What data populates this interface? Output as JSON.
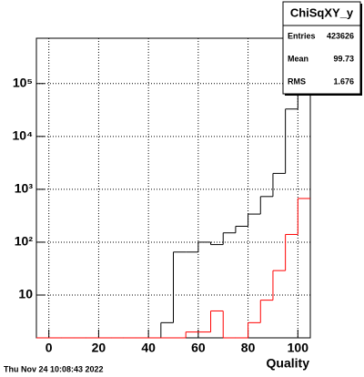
{
  "chart_data": {
    "type": "histogram",
    "x_label": "Quality",
    "timestamp": "Thu Nov 24 10:08:43 2022",
    "bins": [
      -5,
      0,
      5,
      10,
      15,
      20,
      25,
      30,
      35,
      40,
      45,
      50,
      55,
      60,
      65,
      70,
      75,
      80,
      85,
      90,
      95,
      100,
      105
    ],
    "series": [
      {
        "color": "#000000",
        "values": [
          0,
          0,
          0,
          0,
          0,
          0,
          0,
          0,
          0,
          0,
          3,
          65,
          65,
          100,
          90,
          150,
          200,
          340,
          730,
          2000,
          33000,
          387000
        ]
      },
      {
        "color": "#ff0000",
        "values": [
          0,
          0,
          0,
          0,
          0,
          0,
          0,
          0,
          0,
          0,
          0,
          0,
          2,
          2,
          5,
          0,
          0,
          3,
          8,
          29,
          140,
          670
        ]
      }
    ],
    "xlim": [
      -5,
      105
    ],
    "xticks": [
      0,
      20,
      40,
      60,
      80,
      100
    ],
    "ylim": [
      1.55,
      720000
    ],
    "yticks": [
      10,
      {
        "value": 100,
        "label": "10²"
      },
      {
        "value": 1000,
        "label": "10³"
      },
      {
        "value": 10000,
        "label": "10⁴"
      },
      {
        "value": 100000,
        "label": "10⁵"
      }
    ],
    "log_y": true,
    "grid": true,
    "stats": {
      "title": "ChiSqXY_y",
      "rows": [
        [
          "Entries",
          "423626"
        ],
        [
          "Mean",
          "99.73"
        ],
        [
          "RMS",
          "1.676"
        ]
      ]
    }
  }
}
